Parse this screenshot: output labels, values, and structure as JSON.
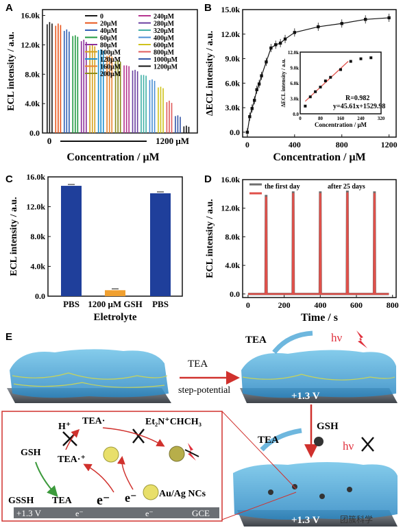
{
  "panels": {
    "A": {
      "label": "A"
    },
    "B": {
      "label": "B"
    },
    "C": {
      "label": "C"
    },
    "D": {
      "label": "D"
    },
    "E": {
      "label": "E"
    }
  },
  "chart_data": [
    {
      "panel": "A",
      "type": "bar",
      "xlabel": "Concentration / μM",
      "ylabel": "ECL intensity / a.u.",
      "ylim": [
        0,
        16800
      ],
      "yticks": [
        "0.0",
        "4.0k",
        "8.0k",
        "12.0k",
        "16.0k"
      ],
      "x_start_label": "0",
      "x_end_label": "1200 μM",
      "series": [
        {
          "name": "0",
          "color": "#1a1a1a",
          "values": [
            14800,
            15100,
            14900
          ]
        },
        {
          "name": "20μM",
          "color": "#e8541a",
          "values": [
            14600,
            14900,
            14700
          ]
        },
        {
          "name": "40μM",
          "color": "#2f5fb4",
          "values": [
            13900,
            14100,
            13800
          ]
        },
        {
          "name": "60μM",
          "color": "#1f9a3f",
          "values": [
            13200,
            13300,
            13100
          ]
        },
        {
          "name": "80μM",
          "color": "#8b2f9b",
          "values": [
            12500,
            12700,
            12400
          ]
        },
        {
          "name": "100μM",
          "color": "#d4a017",
          "values": [
            11900,
            12000,
            11800
          ]
        },
        {
          "name": "120μM",
          "color": "#1c8fcf",
          "values": [
            11300,
            11400,
            11200
          ]
        },
        {
          "name": "160μM",
          "color": "#e8832e",
          "values": [
            10500,
            10600,
            10400
          ]
        },
        {
          "name": "200μM",
          "color": "#8b8b1b",
          "values": [
            9800,
            9900,
            9700
          ]
        },
        {
          "name": "240μM",
          "color": "#b5338e",
          "values": [
            9200,
            9200,
            9100
          ]
        },
        {
          "name": "280μM",
          "color": "#6a3fa0",
          "values": [
            8500,
            8600,
            8400
          ]
        },
        {
          "name": "320μM",
          "color": "#40b0a6",
          "values": [
            7900,
            7900,
            7800
          ]
        },
        {
          "name": "400μM",
          "color": "#4b8fd4",
          "values": [
            7200,
            7300,
            7100
          ]
        },
        {
          "name": "600μM",
          "color": "#cfc21c",
          "values": [
            6200,
            6300,
            6100
          ]
        },
        {
          "name": "800μM",
          "color": "#e05b5b",
          "values": [
            4200,
            4400,
            4100
          ]
        },
        {
          "name": "1000μM",
          "color": "#3557a8",
          "values": [
            2300,
            2400,
            2200
          ]
        },
        {
          "name": "1200μM",
          "color": "#111111",
          "values": [
            900,
            1000,
            850
          ]
        }
      ]
    },
    {
      "panel": "B",
      "type": "line",
      "xlabel": "Concentration / μM",
      "ylabel": "ΔECL intensity / a.u.",
      "xlim": [
        -40,
        1260
      ],
      "ylim": [
        -600,
        15000
      ],
      "xticks": [
        "0",
        "400",
        "800",
        "1200"
      ],
      "yticks": [
        "0.0",
        "3.0k",
        "6.0k",
        "9.0k",
        "12.0k",
        "15.0k"
      ],
      "x": [
        0,
        20,
        40,
        60,
        80,
        100,
        120,
        160,
        200,
        240,
        280,
        320,
        400,
        600,
        800,
        1000,
        1200
      ],
      "y": [
        0,
        1900,
        2900,
        3900,
        5200,
        5900,
        6900,
        8600,
        10300,
        10700,
        10900,
        11400,
        12200,
        12900,
        13300,
        13800,
        14000
      ],
      "inset": {
        "xlabel": "Concentration / μM",
        "ylabel": "ΔECL intensity / a.u.",
        "xticks": [
          "0",
          "80",
          "160",
          "240",
          "320"
        ],
        "yticks": [
          "0.0",
          "3.0k",
          "6.0k",
          "9.0k",
          "12.0k"
        ],
        "xlim": [
          0,
          320
        ],
        "ylim": [
          0,
          12000
        ],
        "x": [
          20,
          40,
          60,
          80,
          100,
          120,
          160,
          200,
          240,
          280
        ],
        "y": [
          1500,
          3300,
          4300,
          5200,
          6400,
          7100,
          8600,
          10200,
          10700,
          10900
        ],
        "fit_x": [
          20,
          190
        ],
        "annotation_r": "R=0.982",
        "annotation_eq": "y=45.61x+1529.98"
      }
    },
    {
      "panel": "C",
      "type": "bar",
      "xlabel": "Eletrolyte",
      "ylabel": "ECL intensity / a.u.",
      "ylim": [
        0,
        16000
      ],
      "yticks": [
        "0.0",
        "4.0k",
        "8.0k",
        "12.0k",
        "16.0k"
      ],
      "categories": [
        "PBS",
        "1200 μM GSH",
        "PBS"
      ],
      "values": [
        14800,
        800,
        13800
      ],
      "colors": [
        "#1f3f9b",
        "#f0a030",
        "#1f3f9b"
      ]
    },
    {
      "panel": "D",
      "type": "line",
      "xlabel": "Time / s",
      "ylabel": "ECL intensity / a.u.",
      "xlim": [
        -30,
        820
      ],
      "ylim": [
        -500,
        16000
      ],
      "xticks": [
        "0",
        "200",
        "400",
        "600",
        "800"
      ],
      "yticks": [
        "0.0",
        "4.0k",
        "8.0k",
        "12.0k",
        "16.0k"
      ],
      "series": [
        {
          "name": "the first day",
          "color": "#6e6e6e",
          "peaks_t": [
            100,
            250,
            400,
            550,
            700
          ],
          "peaks_h": [
            13700,
            14200,
            14200,
            14300,
            14200
          ]
        },
        {
          "name": "after 25 days",
          "color": "#e0504a",
          "peaks_t": [
            100,
            250,
            400,
            550,
            700
          ],
          "peaks_h": [
            13500,
            14000,
            14000,
            14100,
            14000
          ]
        }
      ]
    }
  ],
  "scheme": {
    "tea_label": "TEA",
    "step_potential": "step-potential",
    "hv": "hν",
    "voltage": "+1.3 V",
    "gsh": "GSH",
    "h_plus": "H⁺",
    "tea_dot": "TEA·",
    "et2n": "Et₂N⁺CHCH₃",
    "tea_rad_cation": "TEA·⁺",
    "gssh": "GSSH",
    "e_minus": "e⁻",
    "aunc": "Au/Ag NCs",
    "gce": "GCE",
    "watermark": "团簇科学"
  }
}
